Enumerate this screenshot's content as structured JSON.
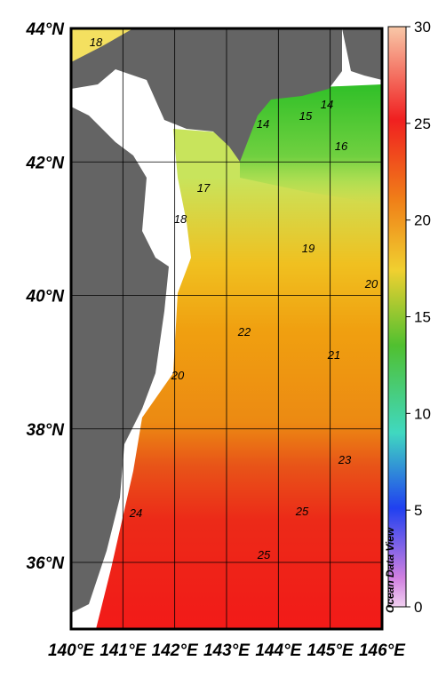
{
  "map": {
    "lat_labels": [
      "44°N",
      "42°N",
      "40°N",
      "38°N",
      "36°N"
    ],
    "lon_labels": [
      "140°E",
      "141°E",
      "142°E",
      "143°E",
      "144°E",
      "145°E",
      "146°E"
    ],
    "contour_labels": [
      18,
      14,
      15,
      14,
      16,
      17,
      18,
      19,
      20,
      22,
      21,
      20,
      23,
      24,
      25,
      25
    ],
    "colorbar_ticks": [
      0,
      5,
      10,
      15,
      20,
      25,
      30
    ],
    "watermark": "Ocean Data View"
  }
}
